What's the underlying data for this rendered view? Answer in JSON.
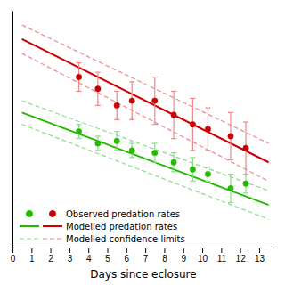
{
  "chart_data": {
    "type": "scatter",
    "xlabel": "Days since eclosure",
    "xlim": [
      0,
      13.8
    ],
    "ylim": [
      0.0,
      1.0
    ],
    "xticks": [
      0,
      1,
      2,
      3,
      4,
      5,
      6,
      7,
      8,
      9,
      10,
      11,
      12,
      13
    ],
    "yticks": [],
    "tick_labels": "x",
    "legend": "lower left",
    "series": [
      {
        "name": "Observed predation rates",
        "type": "scatter",
        "marker": "circle",
        "color": "#cc0000",
        "x": [
          3.5,
          4.5,
          5.5,
          6.3,
          7.5,
          8.5,
          9.5,
          10.3,
          11.5,
          12.3
        ],
        "values": [
          0.72,
          0.67,
          0.6,
          0.62,
          0.62,
          0.56,
          0.52,
          0.5,
          0.47,
          0.42
        ],
        "yerr": [
          0.06,
          0.07,
          0.06,
          0.08,
          0.1,
          0.1,
          0.11,
          0.09,
          0.1,
          0.11
        ]
      },
      {
        "type": "scatter",
        "marker": "circle",
        "color": "#22bb00",
        "x": [
          3.5,
          4.5,
          5.5,
          6.3,
          7.5,
          8.5,
          9.5,
          10.3,
          11.5,
          12.3
        ],
        "values": [
          0.49,
          0.44,
          0.45,
          0.41,
          0.4,
          0.36,
          0.33,
          0.31,
          0.25,
          0.27
        ],
        "yerr": [
          0.03,
          0.03,
          0.04,
          0.03,
          0.04,
          0.04,
          0.05,
          0.03,
          0.06,
          0.04
        ]
      },
      {
        "name": "Modelled predation rates",
        "type": "line",
        "line_style": "solid",
        "color": "#cc0000",
        "x": [
          0.5,
          13.5
        ],
        "values": [
          0.88,
          0.36
        ]
      },
      {
        "type": "line",
        "line_style": "solid",
        "color": "#22bb00",
        "x": [
          0.5,
          13.5
        ],
        "values": [
          0.57,
          0.18
        ]
      },
      {
        "name": "Modelled confidence limits",
        "type": "line",
        "line_style": "dashed",
        "color": "#ee8888",
        "x": [
          0.5,
          13.5
        ],
        "values": [
          0.94,
          0.44
        ]
      },
      {
        "type": "line",
        "line_style": "dashed",
        "color": "#ee8888",
        "x": [
          0.5,
          13.5
        ],
        "values": [
          0.82,
          0.28
        ]
      },
      {
        "type": "line",
        "line_style": "dashed",
        "color": "#88dd88",
        "x": [
          0.5,
          13.5
        ],
        "values": [
          0.62,
          0.24
        ]
      },
      {
        "type": "line",
        "line_style": "dashed",
        "color": "#88dd88",
        "x": [
          0.5,
          13.5
        ],
        "values": [
          0.52,
          0.12
        ]
      }
    ]
  }
}
